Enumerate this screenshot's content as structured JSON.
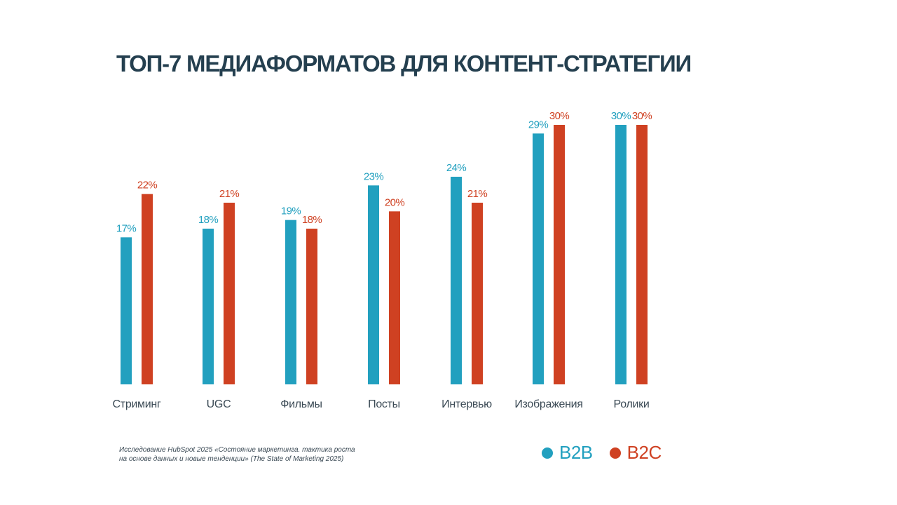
{
  "title": "ТОП-7 МЕДИАФОРМАТОВ ДЛЯ КОНТЕНТ-СТРАТЕГИИ",
  "source_line1": "Исследование  HubSpot 2025 «Состояние  маркетинга. тактика роста",
  "source_line2": "на основе  данных и новые тенденции»  (The State of Marketing 2025)",
  "colors": {
    "b2b": "#22a0bf",
    "b2c": "#cf4122",
    "title": "#243f4f",
    "category": "#3b4a55"
  },
  "chart_data": {
    "type": "bar",
    "title": "ТОП-7 МЕДИАФОРМАТОВ ДЛЯ КОНТЕНТ-СТРАТЕГИИ",
    "categories": [
      "Стриминг",
      "UGC",
      "Фильмы",
      "Посты",
      "Интервью",
      "Изображения",
      "Ролики"
    ],
    "series": [
      {
        "name": "B2B",
        "values": [
          17,
          18,
          19,
          23,
          24,
          29,
          30
        ],
        "color": "#22a0bf"
      },
      {
        "name": "B2C",
        "values": [
          22,
          21,
          18,
          20,
          21,
          30,
          30
        ],
        "color": "#cf4122"
      }
    ],
    "value_suffix": "%",
    "ylim": [
      0,
      30
    ],
    "grid": false,
    "legend_position": "bottom-right"
  }
}
